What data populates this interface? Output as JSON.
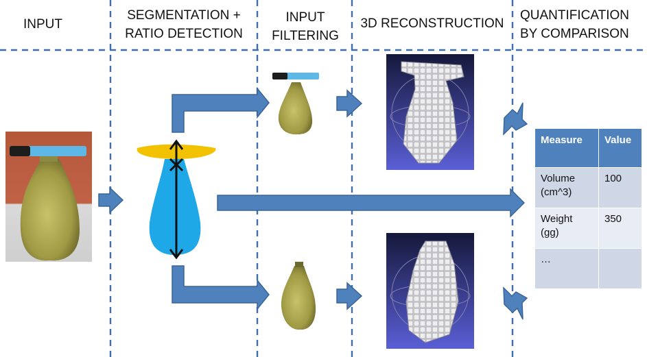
{
  "stages": [
    {
      "key": "input",
      "lines": [
        "INPUT"
      ]
    },
    {
      "key": "segmentation",
      "lines": [
        "SEGMENTATION +",
        "RATIO DETECTION"
      ]
    },
    {
      "key": "filtering",
      "lines": [
        "INPUT",
        "FILTERING"
      ]
    },
    {
      "key": "reconstruction",
      "lines": [
        "3D RECONSTRUCTION"
      ]
    },
    {
      "key": "quantification",
      "lines": [
        "QUANTIFICATION",
        "BY COMPARISON"
      ]
    }
  ],
  "table": {
    "headers": [
      "Measure",
      "Value"
    ],
    "rows": [
      {
        "measure": "Volume (cm^3)",
        "value": "100"
      },
      {
        "measure": "Weight (gg)",
        "value": "350"
      },
      {
        "measure": "…",
        "value": ""
      }
    ]
  },
  "colors": {
    "divider": "#3f6fa8",
    "arrow": "#4f81bd",
    "arrow_stroke": "#3a6597",
    "segment_body": "#1ea8e8",
    "segment_marker": "#f2c200",
    "pear_skin": "#a7a04a",
    "marker_pen": "#5fb7e6",
    "photo_background": "#b5583a",
    "render_background": "#2a2f8a"
  }
}
